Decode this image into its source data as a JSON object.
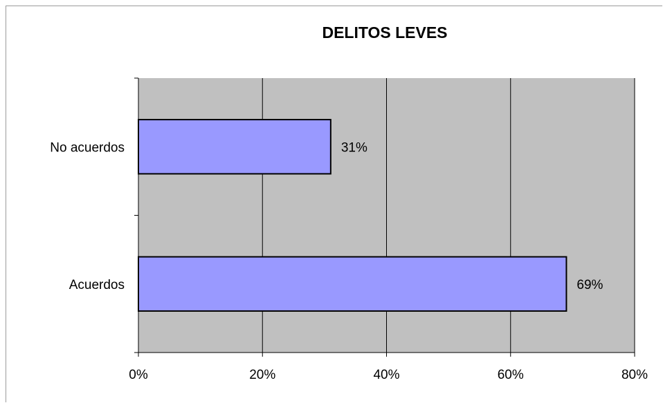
{
  "chart_data": {
    "type": "bar",
    "orientation": "horizontal",
    "title": "DELITOS LEVES",
    "xlabel": "",
    "ylabel": "",
    "categories": [
      "No acuerdos",
      "Acuerdos"
    ],
    "values": [
      0.31,
      0.69
    ],
    "data_labels": [
      "31%",
      "69%"
    ],
    "xlim": [
      0,
      0.8
    ],
    "x_ticks": [
      0,
      0.2,
      0.4,
      0.6,
      0.8
    ],
    "x_tick_labels": [
      "0%",
      "20%",
      "40%",
      "60%",
      "80%"
    ],
    "grid": "vertical",
    "legend": "none",
    "colors": {
      "bar_fill": "#9999ff",
      "bar_stroke": "#000000",
      "plot_background": "#c0c0c0",
      "gridline": "#000000"
    }
  }
}
